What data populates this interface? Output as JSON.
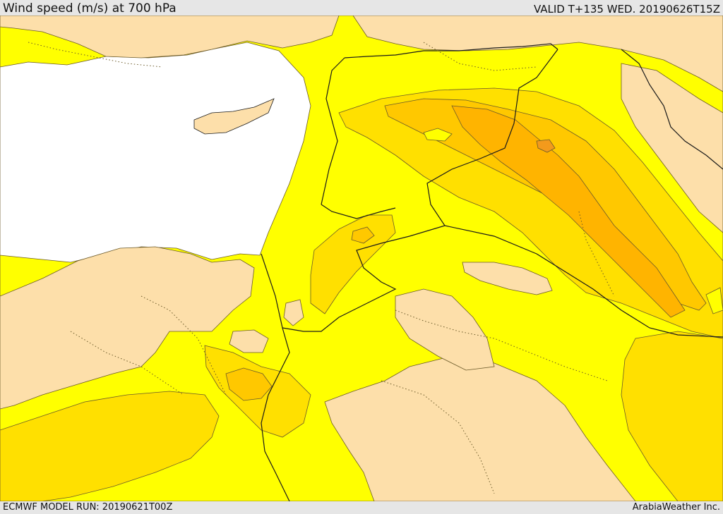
{
  "header": {
    "title": "Wind speed (m/s) at 700 hPa",
    "valid": "VALID T+135 WED. 20190626T15Z"
  },
  "footer": {
    "model_run": "ECMWF MODEL RUN: 20190621T00Z",
    "credit": "ArabiaWeather Inc."
  },
  "colors": {
    "sea": "#ffffff",
    "calm": "#fddfaa",
    "band_1": "#ffff00",
    "band_2": "#ffe000",
    "band_3": "#ffc800",
    "band_4": "#ffb400",
    "band_5": "#f39a1c",
    "contour": "#6b5a2a",
    "border": "#1a1a1a"
  }
}
